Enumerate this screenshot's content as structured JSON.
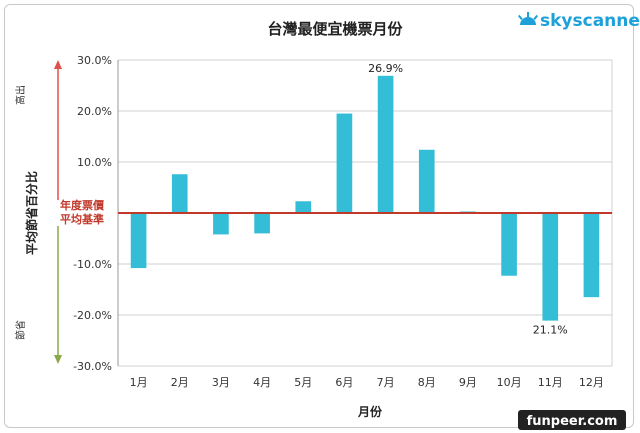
{
  "chart_data": {
    "type": "bar",
    "title": "台灣最便宜機票月份",
    "xlabel": "月份",
    "ylabel": "平均節省百分比",
    "categories": [
      "1月",
      "2月",
      "3月",
      "4月",
      "5月",
      "6月",
      "7月",
      "8月",
      "9月",
      "10月",
      "11月",
      "12月"
    ],
    "values": [
      -10.8,
      7.6,
      -4.2,
      -4.0,
      2.3,
      19.5,
      26.9,
      12.4,
      0.3,
      -12.3,
      -21.1,
      -16.5
    ],
    "ylim": [
      -30,
      30
    ],
    "yticks": [
      30,
      20,
      10,
      0,
      -10,
      -20,
      -30
    ],
    "ytick_labels": [
      "30.0%",
      "20.0%",
      "10.0%",
      "",
      "-10.0%",
      "-20.0%",
      "-30.0%"
    ],
    "data_labels": [
      {
        "index": 6,
        "text": "26.9%"
      },
      {
        "index": 10,
        "text": "21.1%"
      }
    ],
    "baseline_label": [
      "年度票價",
      "平均基準"
    ],
    "top_indicator": "高出",
    "bottom_indicator": "節省",
    "bar_color": "#33bdd6",
    "baseline_color": "#c0392b",
    "indicator_top_color": "#e0504a",
    "indicator_bottom_color": "#8aa84a"
  },
  "branding": {
    "logo_text": "skyscanner",
    "watermark": "funpeer.com"
  }
}
